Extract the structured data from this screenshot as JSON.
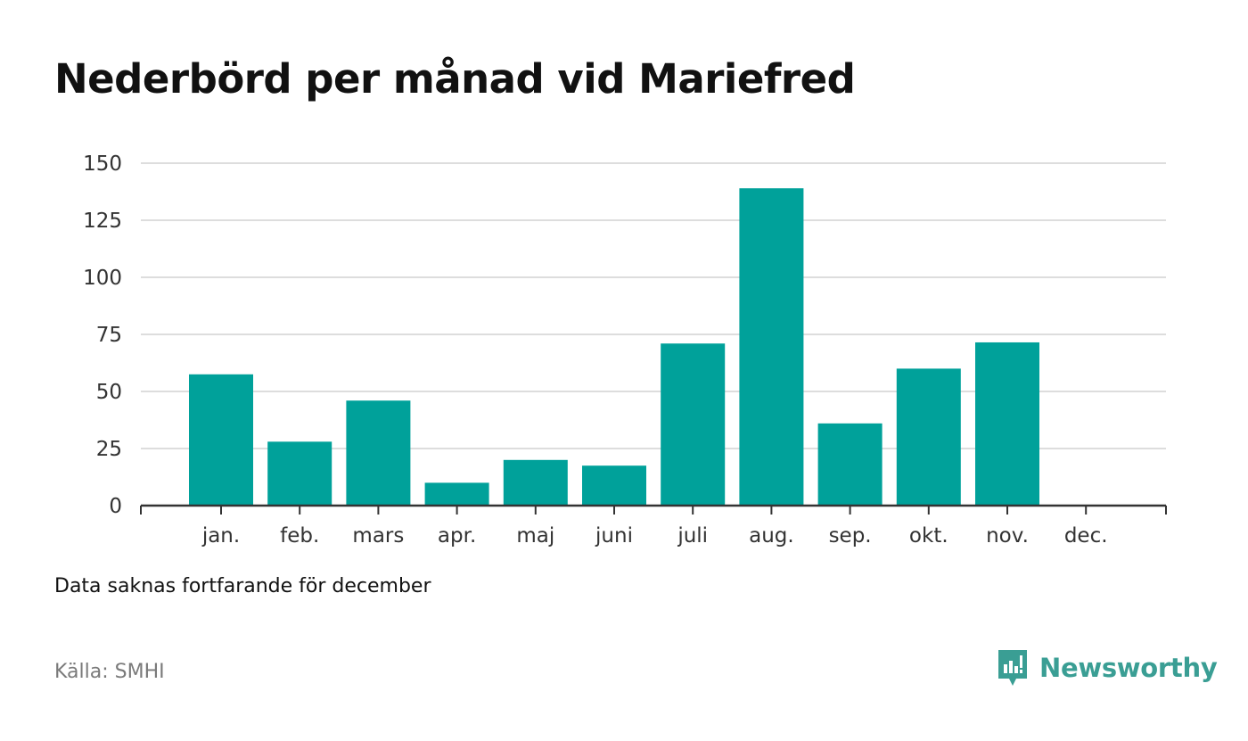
{
  "title": "Nederbörd per månad vid Mariefred",
  "note": "Data saknas fortfarande för december",
  "source": "Källa: SMHI",
  "brand": {
    "name": "Newsworthy",
    "icon": "newsworthy-logo-icon"
  },
  "colors": {
    "bar": "#00a19a",
    "grid": "#dddddd",
    "axis": "#333333",
    "brand": "#3a9e94"
  },
  "chart_data": {
    "type": "bar",
    "title": "Nederbörd per månad vid Mariefred",
    "xlabel": "",
    "ylabel": "",
    "categories": [
      "jan.",
      "feb.",
      "mars",
      "apr.",
      "maj",
      "juni",
      "juli",
      "aug.",
      "sep.",
      "okt.",
      "nov.",
      "dec."
    ],
    "values": [
      57.5,
      28,
      46,
      10,
      20,
      17.5,
      71,
      139,
      36,
      60,
      71.5,
      null
    ],
    "ylim": [
      0,
      150
    ],
    "yticks": [
      0,
      25,
      50,
      75,
      100,
      125,
      150
    ],
    "grid": true,
    "legend": "none"
  }
}
